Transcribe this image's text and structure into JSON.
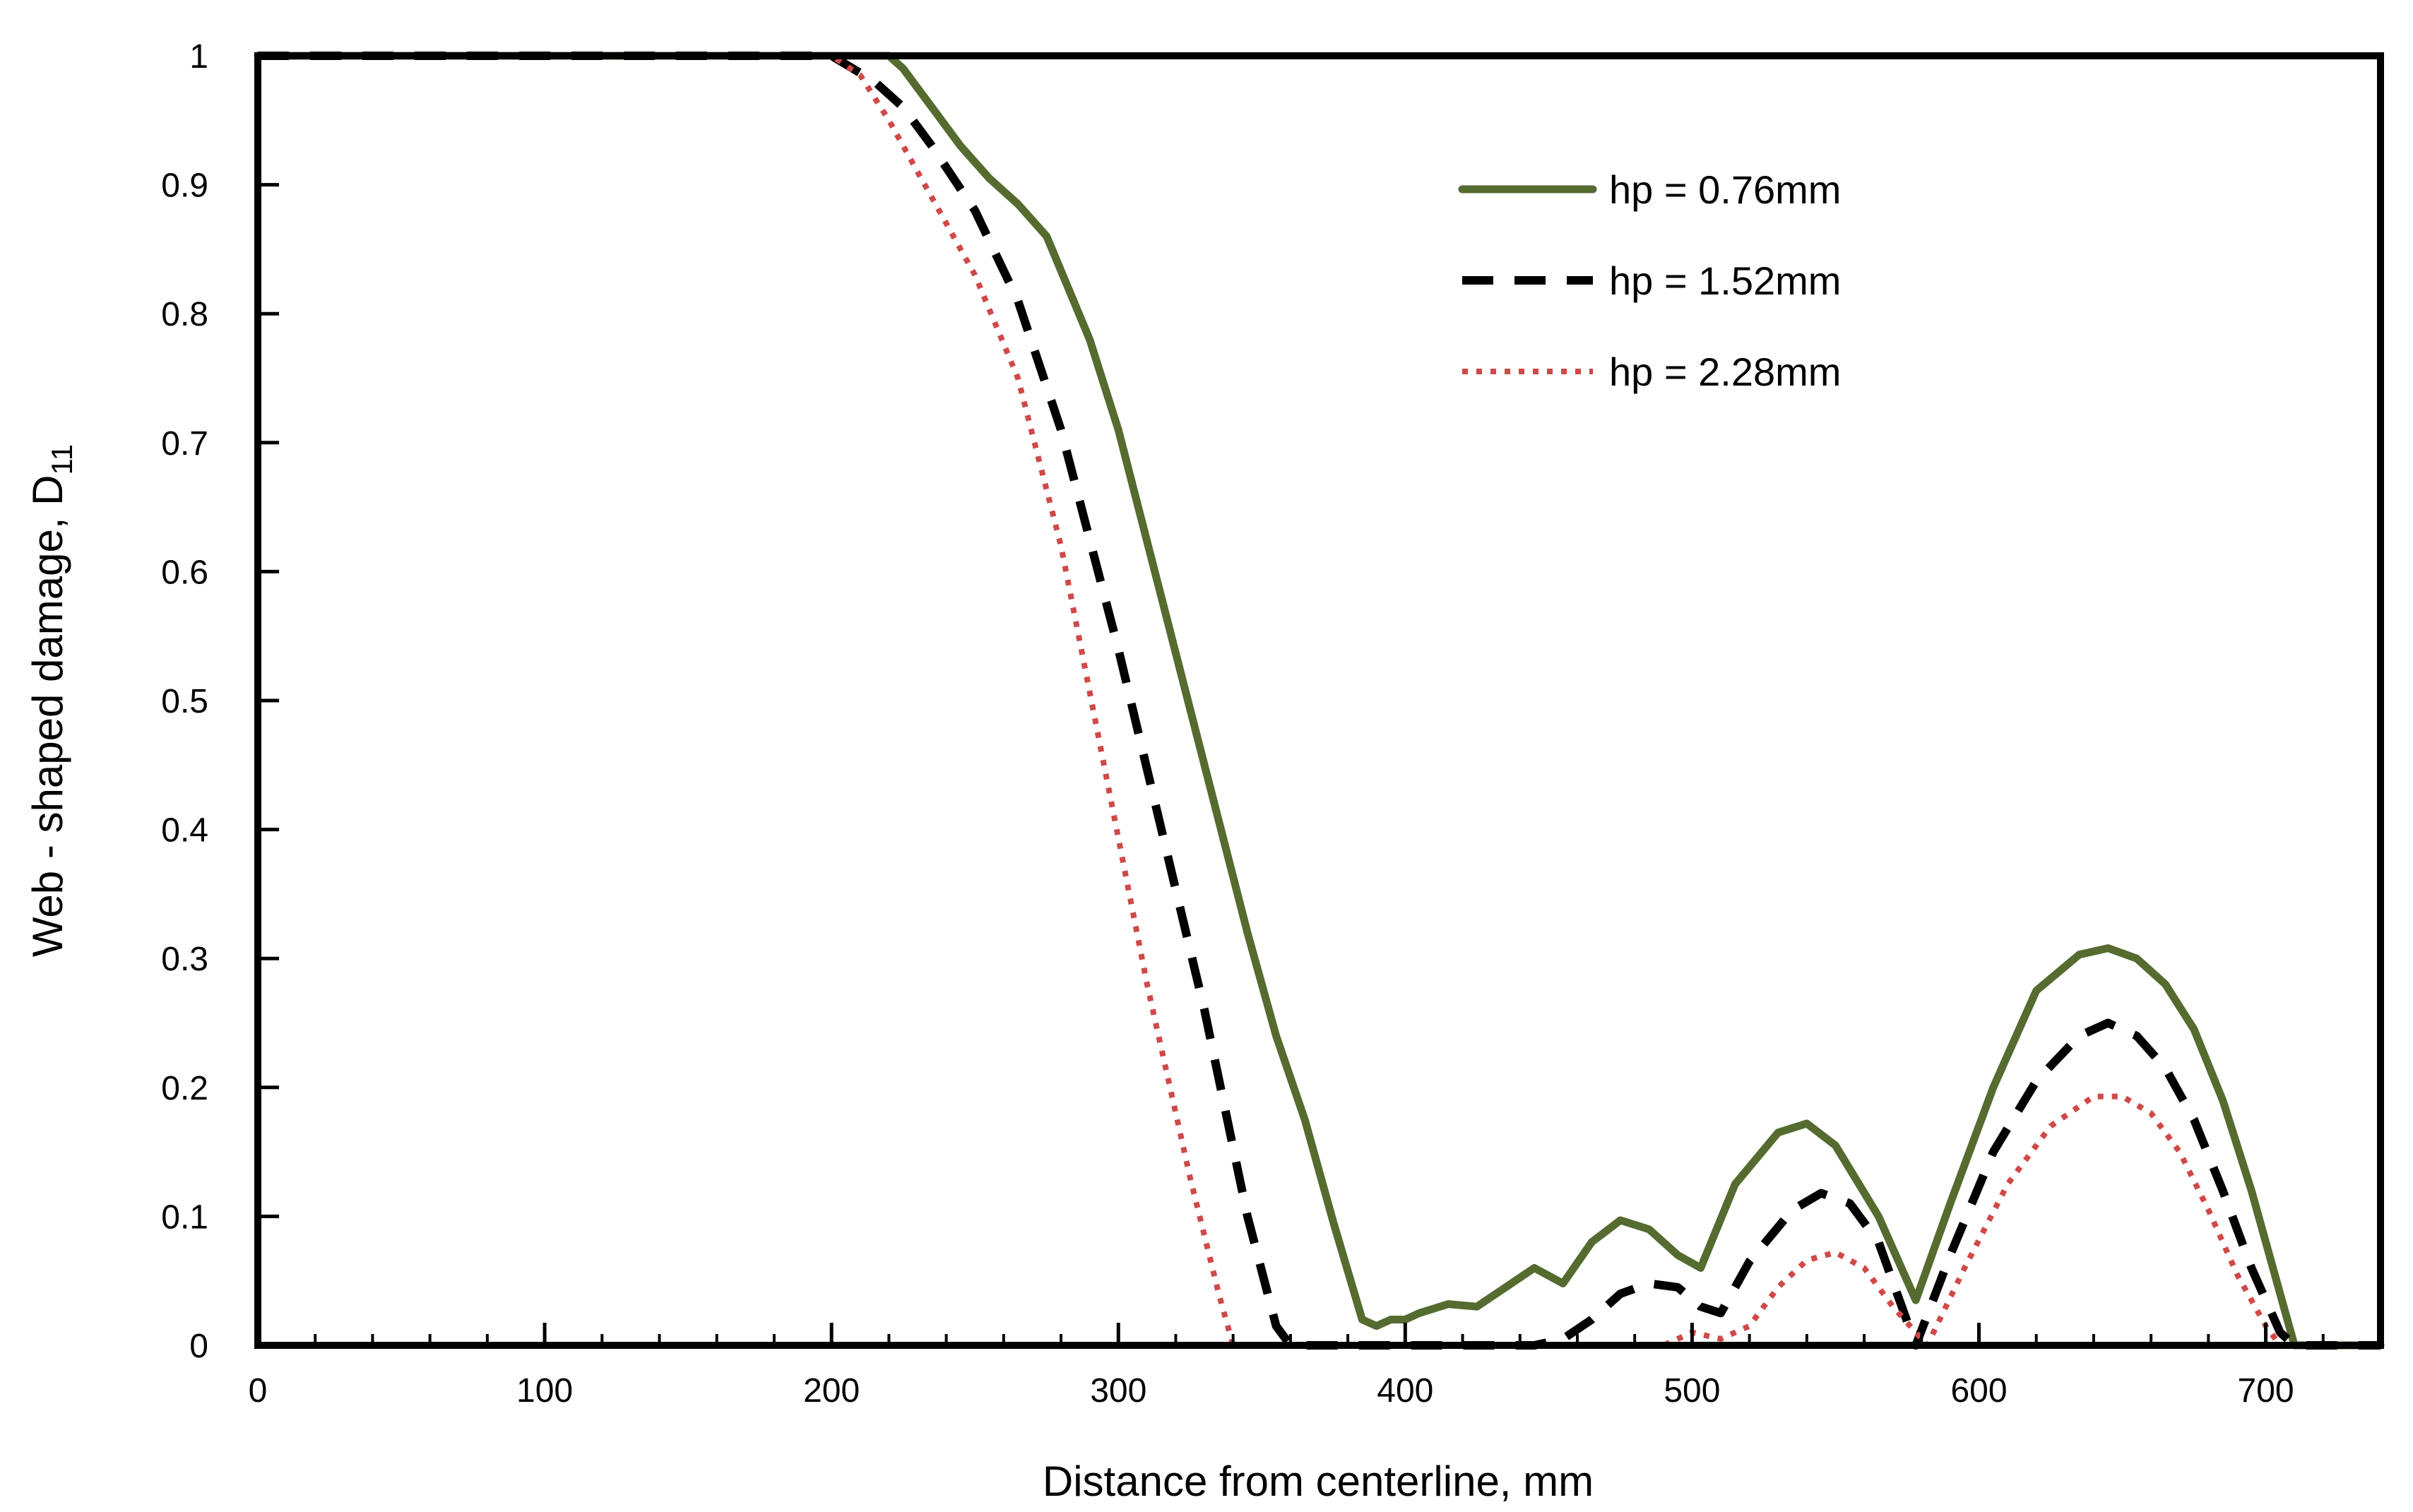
{
  "chart_data": {
    "type": "line",
    "title": "",
    "xlabel": "Distance from centerline, mm",
    "ylabel": "Web - shaped damage, D",
    "ylabel_subscript": "11",
    "xlim": [
      0,
      740
    ],
    "ylim": [
      0,
      1
    ],
    "x_ticks": [
      0,
      100,
      200,
      300,
      400,
      500,
      600,
      700
    ],
    "x_tick_labels": [
      "0",
      "100",
      "200",
      "300",
      "400",
      "500",
      "600",
      "700"
    ],
    "y_ticks": [
      0,
      0.1,
      0.2,
      0.3,
      0.4,
      0.5,
      0.6,
      0.7,
      0.8,
      0.9,
      1
    ],
    "y_tick_labels": [
      "0",
      "0.1",
      "0.2",
      "0.3",
      "0.4",
      "0.5",
      "0.6",
      "0.7",
      "0.8",
      "0.9",
      "1"
    ],
    "grid": false,
    "legend_position": "top-right",
    "series": [
      {
        "name": "hp = 0.76mm",
        "color": "#556b2f",
        "style": "solid",
        "x": [
          0,
          220,
          225,
          235,
          245,
          255,
          265,
          275,
          290,
          300,
          315,
          330,
          345,
          355,
          365,
          375,
          385,
          390,
          395,
          400,
          405,
          415,
          425,
          435,
          445,
          455,
          465,
          475,
          485,
          495,
          503,
          515,
          530,
          540,
          550,
          565,
          578,
          590,
          605,
          620,
          635,
          645,
          655,
          665,
          675,
          685,
          695,
          705,
          710,
          740
        ],
        "values": [
          1,
          1,
          0.99,
          0.96,
          0.93,
          0.905,
          0.885,
          0.86,
          0.78,
          0.71,
          0.58,
          0.45,
          0.32,
          0.24,
          0.175,
          0.095,
          0.02,
          0.015,
          0.02,
          0.02,
          0.025,
          0.032,
          0.03,
          0.045,
          0.06,
          0.048,
          0.08,
          0.097,
          0.09,
          0.07,
          0.06,
          0.125,
          0.165,
          0.172,
          0.155,
          0.1,
          0.035,
          0.11,
          0.2,
          0.275,
          0.303,
          0.308,
          0.3,
          0.28,
          0.245,
          0.19,
          0.12,
          0.04,
          0,
          0
        ]
      },
      {
        "name": "hp = 1.52mm",
        "color": "#000000",
        "style": "dashed",
        "x": [
          0,
          200,
          215,
          225,
          235,
          250,
          265,
          280,
          300,
          315,
          330,
          345,
          355,
          360,
          365,
          445,
          455,
          465,
          475,
          485,
          495,
          503,
          510,
          520,
          535,
          545,
          555,
          565,
          578,
          590,
          605,
          620,
          635,
          645,
          655,
          665,
          675,
          685,
          695,
          705,
          710,
          740
        ],
        "values": [
          1,
          1,
          0.98,
          0.96,
          0.93,
          0.88,
          0.81,
          0.71,
          0.54,
          0.4,
          0.26,
          0.1,
          0.015,
          0,
          0,
          0,
          0.005,
          0.02,
          0.04,
          0.048,
          0.045,
          0.03,
          0.025,
          0.065,
          0.105,
          0.118,
          0.11,
          0.08,
          0,
          0.07,
          0.15,
          0.205,
          0.24,
          0.25,
          0.24,
          0.215,
          0.175,
          0.12,
          0.06,
          0.01,
          0,
          0
        ]
      },
      {
        "name": "hp = 2.28mm",
        "color": "#d04848",
        "style": "dotted",
        "x": [
          0,
          200,
          210,
          220,
          235,
          250,
          265,
          280,
          295,
          310,
          325,
          335,
          340,
          345,
          490,
          500,
          510,
          520,
          530,
          540,
          550,
          560,
          570,
          582,
          595,
          610,
          625,
          640,
          650,
          660,
          670,
          680,
          690,
          700,
          705,
          740
        ],
        "values": [
          1,
          1,
          0.985,
          0.95,
          0.89,
          0.83,
          0.75,
          0.62,
          0.45,
          0.28,
          0.13,
          0.04,
          0,
          0,
          0,
          0.01,
          0.005,
          0.015,
          0.045,
          0.066,
          0.072,
          0.06,
          0.03,
          0,
          0.06,
          0.125,
          0.17,
          0.193,
          0.193,
          0.18,
          0.15,
          0.105,
          0.055,
          0.015,
          0,
          0
        ]
      }
    ]
  }
}
